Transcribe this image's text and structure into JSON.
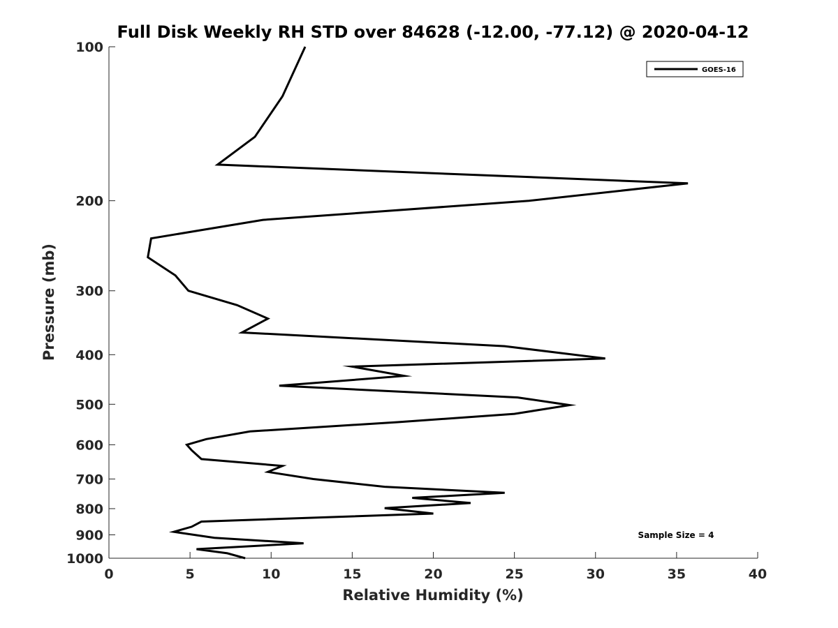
{
  "chart_data": {
    "type": "line",
    "title": "Full Disk Weekly RH STD over 84628 (-12.00, -77.12) @ 2020-04-12",
    "xlabel": "Relative Humidity (%)",
    "ylabel": "Pressure (mb)",
    "xlim": [
      0,
      40
    ],
    "ylim": [
      100,
      1000
    ],
    "y_scale": "log",
    "y_reversed": true,
    "grid": false,
    "legend_position": "top-right",
    "xticks": [
      0,
      5,
      10,
      15,
      20,
      25,
      30,
      35,
      40
    ],
    "xtick_labels": [
      "0",
      "5",
      "10",
      "15",
      "20",
      "25",
      "30",
      "35",
      "40"
    ],
    "yticks": [
      100,
      200,
      300,
      400,
      500,
      600,
      700,
      800,
      900,
      1000
    ],
    "ytick_labels": [
      "100",
      "200",
      "300",
      "400",
      "500",
      "600",
      "700",
      "800",
      "900",
      "1000"
    ],
    "series": [
      {
        "name": "GOES-16",
        "color": "#000000",
        "x": [
          12.1,
          10.7,
          9.0,
          6.7,
          35.7,
          25.9,
          9.5,
          2.6,
          2.4,
          4.1,
          4.9,
          7.9,
          9.8,
          8.2,
          24.4,
          30.6,
          15.0,
          18.2,
          10.5,
          25.2,
          28.4,
          25.0,
          17.8,
          8.7,
          6.0,
          4.8,
          5.1,
          5.7,
          10.7,
          9.8,
          12.6,
          17.0,
          24.4,
          18.7,
          22.3,
          17.0,
          20.0,
          5.7,
          5.1,
          4.0,
          6.5,
          12.0,
          5.4,
          7.3,
          8.4
        ],
        "y": [
          100,
          125,
          150,
          170,
          185,
          200,
          218,
          237,
          258,
          280,
          300,
          320,
          340,
          362,
          385,
          407,
          422,
          440,
          460,
          485,
          502,
          522,
          542,
          565,
          585,
          600,
          615,
          640,
          660,
          678,
          700,
          725,
          745,
          762,
          780,
          798,
          818,
          848,
          868,
          888,
          912,
          935,
          960,
          978,
          1000
        ]
      }
    ],
    "annotations": [
      "Sample Size = 4"
    ]
  }
}
